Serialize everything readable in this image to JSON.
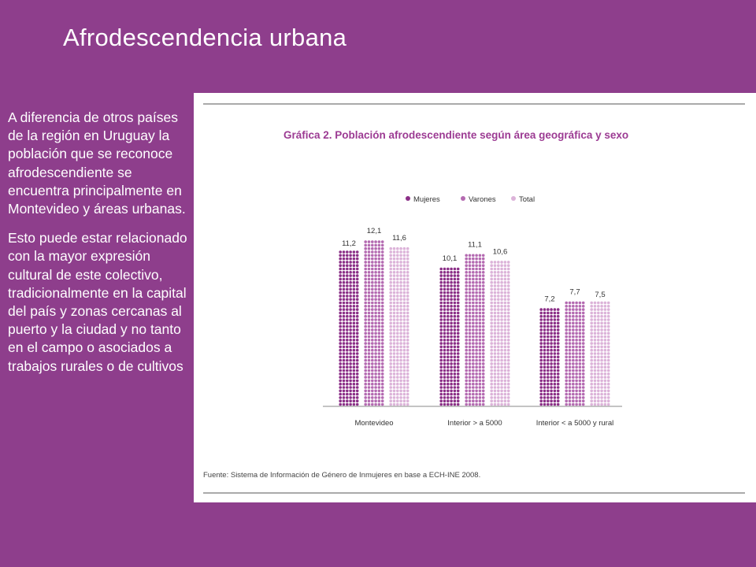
{
  "slide": {
    "title": "Afrodescendencia urbana",
    "paragraphs": [
      "A diferencia de otros países de la región en Uruguay la población que se reconoce afrodescendiente se encuentra principalmente en Montevideo y áreas urbanas.",
      "Esto puede estar relacionado con la mayor expresión cultural de este colectivo, tradicionalmente en la capital del país  y zonas cercanas al puerto y la ciudad y no tanto en el campo o asociados a trabajos rurales o de cultivos"
    ]
  },
  "chart_data": {
    "type": "bar",
    "title": "Gráfica 2. Población afrodescendiente según área geográfica y sexo",
    "source": "Fuente: Sistema de Información de Género de Inmujeres en base a ECH-INE 2008.",
    "categories": [
      "Montevideo",
      "Interior > a 5000",
      "Interior < a 5000 y rural"
    ],
    "series": [
      {
        "name": "Mujeres",
        "values": [
          11.2,
          10.1,
          7.2
        ],
        "labels": [
          "11,2",
          "10,1",
          "7,2"
        ],
        "color": "#8b2f87"
      },
      {
        "name": "Varones",
        "values": [
          12.1,
          11.1,
          7.7
        ],
        "labels": [
          "12,1",
          "11,1",
          "7,7"
        ],
        "color": "#b46ab1"
      },
      {
        "name": "Total",
        "values": [
          11.6,
          10.6,
          7.5
        ],
        "labels": [
          "11,6",
          "10,6",
          "7,5"
        ],
        "color": "#dcb3d9"
      }
    ],
    "legend_position": "top-center",
    "grid": false,
    "bar_style": "dotted",
    "ylim": [
      0,
      13
    ],
    "title_color": "#9c3b93"
  }
}
